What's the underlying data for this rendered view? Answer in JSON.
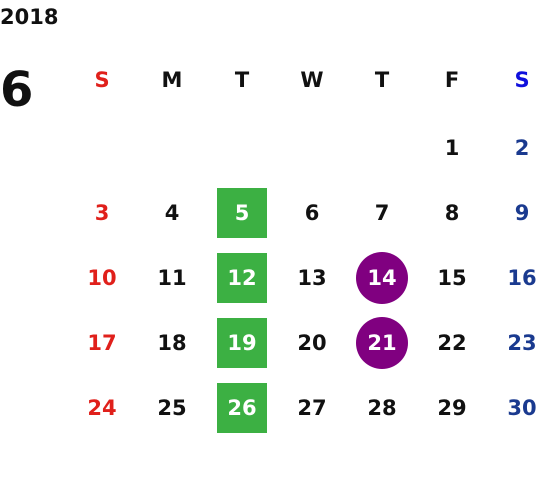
{
  "year": "2018",
  "month": "6",
  "weekdays": [
    "S",
    "M",
    "T",
    "W",
    "T",
    "F",
    "S"
  ],
  "weeks": [
    [
      "",
      "",
      "",
      "",
      "",
      "1",
      "2"
    ],
    [
      "3",
      "4",
      "5",
      "6",
      "7",
      "8",
      "9"
    ],
    [
      "10",
      "11",
      "12",
      "13",
      "14",
      "15",
      "16"
    ],
    [
      "17",
      "18",
      "19",
      "20",
      "21",
      "22",
      "23"
    ],
    [
      "24",
      "25",
      "26",
      "27",
      "28",
      "29",
      "30"
    ]
  ],
  "highlight_green_days": [
    "5",
    "12",
    "19",
    "26"
  ],
  "highlight_purple_days": [
    "14",
    "21"
  ],
  "colors": {
    "sunday": "#e0201b",
    "saturday": "#1a3a8f",
    "saturday_header": "#1010dd",
    "weekday": "#111111",
    "highlight_green": "#3cb043",
    "highlight_purple": "#800080"
  }
}
